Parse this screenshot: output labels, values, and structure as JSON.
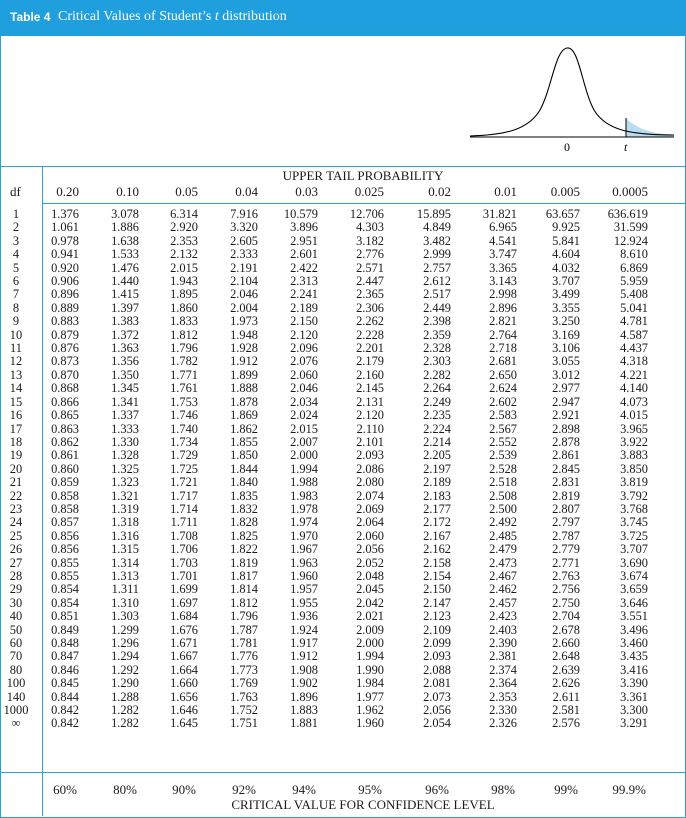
{
  "title": {
    "label": "Table 4",
    "text_prefix": "Critical Values of Student’s ",
    "text_italic": "t",
    "text_suffix": " distribution"
  },
  "figure": {
    "zero_label": "0",
    "t_label": "t",
    "curve_color": "#000000",
    "shade_color": "#b8dcf0"
  },
  "upper_tail_label": "UPPER TAIL PROBABILITY",
  "df_label": "df",
  "column_headers": [
    "0.20",
    "0.10",
    "0.05",
    "0.04",
    "0.03",
    "0.025",
    "0.02",
    "0.01",
    "0.005",
    "0.0005"
  ],
  "rows": [
    [
      "1",
      "1.376",
      "3.078",
      "6.314",
      "7.916",
      "10.579",
      "12.706",
      "15.895",
      "31.821",
      "63.657",
      "636.619"
    ],
    [
      "2",
      "1.061",
      "1.886",
      "2.920",
      "3.320",
      "3.896",
      "4.303",
      "4.849",
      "6.965",
      "9.925",
      "31.599"
    ],
    [
      "3",
      "0.978",
      "1.638",
      "2.353",
      "2.605",
      "2.951",
      "3.182",
      "3.482",
      "4.541",
      "5.841",
      "12.924"
    ],
    [
      "4",
      "0.941",
      "1.533",
      "2.132",
      "2.333",
      "2.601",
      "2.776",
      "2.999",
      "3.747",
      "4.604",
      "8.610"
    ],
    [
      "5",
      "0.920",
      "1.476",
      "2.015",
      "2.191",
      "2.422",
      "2.571",
      "2.757",
      "3.365",
      "4.032",
      "6.869"
    ],
    [
      "6",
      "0.906",
      "1.440",
      "1.943",
      "2.104",
      "2.313",
      "2.447",
      "2.612",
      "3.143",
      "3.707",
      "5.959"
    ],
    [
      "7",
      "0.896",
      "1.415",
      "1.895",
      "2.046",
      "2.241",
      "2.365",
      "2.517",
      "2.998",
      "3.499",
      "5.408"
    ],
    [
      "8",
      "0.889",
      "1.397",
      "1.860",
      "2.004",
      "2.189",
      "2.306",
      "2.449",
      "2.896",
      "3.355",
      "5.041"
    ],
    [
      "9",
      "0.883",
      "1.383",
      "1.833",
      "1.973",
      "2.150",
      "2.262",
      "2.398",
      "2.821",
      "3.250",
      "4.781"
    ],
    [
      "10",
      "0.879",
      "1.372",
      "1.812",
      "1.948",
      "2.120",
      "2.228",
      "2.359",
      "2.764",
      "3.169",
      "4.587"
    ],
    [
      "11",
      "0.876",
      "1.363",
      "1.796",
      "1.928",
      "2.096",
      "2.201",
      "2.328",
      "2.718",
      "3.106",
      "4.437"
    ],
    [
      "12",
      "0.873",
      "1.356",
      "1.782",
      "1.912",
      "2.076",
      "2.179",
      "2.303",
      "2.681",
      "3.055",
      "4.318"
    ],
    [
      "13",
      "0.870",
      "1.350",
      "1.771",
      "1.899",
      "2.060",
      "2.160",
      "2.282",
      "2.650",
      "3.012",
      "4.221"
    ],
    [
      "14",
      "0.868",
      "1.345",
      "1.761",
      "1.888",
      "2.046",
      "2.145",
      "2.264",
      "2.624",
      "2.977",
      "4.140"
    ],
    [
      "15",
      "0.866",
      "1.341",
      "1.753",
      "1.878",
      "2.034",
      "2.131",
      "2.249",
      "2.602",
      "2.947",
      "4.073"
    ],
    [
      "16",
      "0.865",
      "1.337",
      "1.746",
      "1.869",
      "2.024",
      "2.120",
      "2.235",
      "2.583",
      "2.921",
      "4.015"
    ],
    [
      "17",
      "0.863",
      "1.333",
      "1.740",
      "1.862",
      "2.015",
      "2.110",
      "2.224",
      "2.567",
      "2.898",
      "3.965"
    ],
    [
      "18",
      "0.862",
      "1.330",
      "1.734",
      "1.855",
      "2.007",
      "2.101",
      "2.214",
      "2.552",
      "2.878",
      "3.922"
    ],
    [
      "19",
      "0.861",
      "1.328",
      "1.729",
      "1.850",
      "2.000",
      "2.093",
      "2.205",
      "2.539",
      "2.861",
      "3.883"
    ],
    [
      "20",
      "0.860",
      "1.325",
      "1.725",
      "1.844",
      "1.994",
      "2.086",
      "2.197",
      "2.528",
      "2.845",
      "3.850"
    ],
    [
      "21",
      "0.859",
      "1.323",
      "1.721",
      "1.840",
      "1.988",
      "2.080",
      "2.189",
      "2.518",
      "2.831",
      "3.819"
    ],
    [
      "22",
      "0.858",
      "1.321",
      "1.717",
      "1.835",
      "1.983",
      "2.074",
      "2.183",
      "2.508",
      "2.819",
      "3.792"
    ],
    [
      "23",
      "0.858",
      "1.319",
      "1.714",
      "1.832",
      "1.978",
      "2.069",
      "2.177",
      "2.500",
      "2.807",
      "3.768"
    ],
    [
      "24",
      "0.857",
      "1.318",
      "1.711",
      "1.828",
      "1.974",
      "2.064",
      "2.172",
      "2.492",
      "2.797",
      "3.745"
    ],
    [
      "25",
      "0.856",
      "1.316",
      "1.708",
      "1.825",
      "1.970",
      "2.060",
      "2.167",
      "2.485",
      "2.787",
      "3.725"
    ],
    [
      "26",
      "0.856",
      "1.315",
      "1.706",
      "1.822",
      "1.967",
      "2.056",
      "2.162",
      "2.479",
      "2.779",
      "3.707"
    ],
    [
      "27",
      "0.855",
      "1.314",
      "1.703",
      "1.819",
      "1.963",
      "2.052",
      "2.158",
      "2.473",
      "2.771",
      "3.690"
    ],
    [
      "28",
      "0.855",
      "1.313",
      "1.701",
      "1.817",
      "1.960",
      "2.048",
      "2.154",
      "2.467",
      "2.763",
      "3.674"
    ],
    [
      "29",
      "0.854",
      "1.311",
      "1.699",
      "1.814",
      "1.957",
      "2.045",
      "2.150",
      "2.462",
      "2.756",
      "3.659"
    ],
    [
      "30",
      "0.854",
      "1.310",
      "1.697",
      "1.812",
      "1.955",
      "2.042",
      "2.147",
      "2.457",
      "2.750",
      "3.646"
    ],
    [
      "40",
      "0.851",
      "1.303",
      "1.684",
      "1.796",
      "1.936",
      "2.021",
      "2.123",
      "2.423",
      "2.704",
      "3.551"
    ],
    [
      "50",
      "0.849",
      "1.299",
      "1.676",
      "1.787",
      "1.924",
      "2.009",
      "2.109",
      "2.403",
      "2.678",
      "3.496"
    ],
    [
      "60",
      "0.848",
      "1.296",
      "1.671",
      "1.781",
      "1.917",
      "2.000",
      "2.099",
      "2.390",
      "2.660",
      "3.460"
    ],
    [
      "70",
      "0.847",
      "1.294",
      "1.667",
      "1.776",
      "1.912",
      "1.994",
      "2.093",
      "2.381",
      "2.648",
      "3.435"
    ],
    [
      "80",
      "0.846",
      "1.292",
      "1.664",
      "1.773",
      "1.908",
      "1.990",
      "2.088",
      "2.374",
      "2.639",
      "3.416"
    ],
    [
      "100",
      "0.845",
      "1.290",
      "1.660",
      "1.769",
      "1.902",
      "1.984",
      "2.081",
      "2.364",
      "2.626",
      "3.390"
    ],
    [
      "140",
      "0.844",
      "1.288",
      "1.656",
      "1.763",
      "1.896",
      "1.977",
      "2.073",
      "2.353",
      "2.611",
      "3.361"
    ],
    [
      "1000",
      "0.842",
      "1.282",
      "1.646",
      "1.752",
      "1.883",
      "1.962",
      "2.056",
      "2.330",
      "2.581",
      "3.300"
    ],
    [
      "∞",
      "0.842",
      "1.282",
      "1.645",
      "1.751",
      "1.881",
      "1.960",
      "2.054",
      "2.326",
      "2.576",
      "3.291"
    ]
  ],
  "confidence_levels": [
    "60%",
    "80%",
    "90%",
    "92%",
    "94%",
    "95%",
    "96%",
    "98%",
    "99%",
    "99.9%"
  ],
  "bottom_label": "CRITICAL VALUE FOR CONFIDENCE LEVEL",
  "colors": {
    "title_bar": "#1f9fde",
    "rule": "#2aa3dc"
  }
}
